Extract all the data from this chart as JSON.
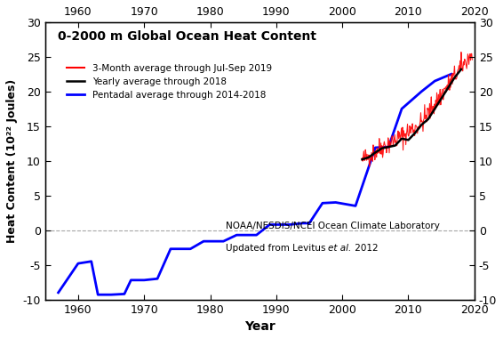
{
  "title": "0-2000 m Global Ocean Heat Content",
  "xlabel": "Year",
  "ylabel": "Heat Content (10²² Joules)",
  "ylim": [
    -10,
    30
  ],
  "xlim": [
    1955,
    2020
  ],
  "yticks": [
    -10,
    -5,
    0,
    5,
    10,
    15,
    20,
    25,
    30
  ],
  "xticks_bottom": [
    1960,
    1970,
    1980,
    1990,
    2000,
    2010,
    2020
  ],
  "xticks_top": [
    1960,
    1970,
    1980,
    1990,
    2000,
    2010,
    2020
  ],
  "legend_labels": [
    "3-Month average through Jul-Sep 2019",
    "Yearly average through 2018",
    "Pentadal average through 2014-2018"
  ],
  "legend_colors": [
    "#ff0000",
    "#000000",
    "#0000ff"
  ],
  "background_color": "#ffffff",
  "pent_x": [
    1957,
    1960,
    1962,
    1963,
    1965,
    1967,
    1968,
    1970,
    1972,
    1974,
    1977,
    1979,
    1982,
    1984,
    1987,
    1989,
    1992,
    1994,
    1995,
    1997,
    1999,
    2002,
    2005,
    2007,
    2009,
    2012,
    2014,
    2016.5
  ],
  "pent_y": [
    -9.0,
    -4.8,
    -4.5,
    -9.3,
    -9.3,
    -9.2,
    -7.2,
    -7.2,
    -7.0,
    -2.7,
    -2.7,
    -1.6,
    -1.6,
    -0.7,
    -0.7,
    0.8,
    0.8,
    1.0,
    1.0,
    3.9,
    4.0,
    3.5,
    11.9,
    12.0,
    17.5,
    20.0,
    21.5,
    22.5
  ],
  "yearly_x": [
    2003,
    2004,
    2005,
    2006,
    2007,
    2008,
    2009,
    2010,
    2011,
    2012,
    2013,
    2014,
    2015,
    2016,
    2017,
    2018
  ],
  "yearly_y": [
    10.2,
    10.5,
    11.2,
    11.8,
    12.0,
    12.2,
    13.2,
    13.0,
    14.0,
    15.2,
    16.0,
    17.5,
    19.0,
    20.5,
    22.0,
    23.2
  ],
  "monthly_base_x": [
    2003,
    2006,
    2009,
    2012,
    2015,
    2018,
    2019.67
  ],
  "monthly_base_y": [
    10.0,
    12.0,
    13.5,
    15.5,
    19.5,
    23.5,
    25.5
  ],
  "monthly_x_start": 2003,
  "monthly_x_end": 2019.67,
  "monthly_n_points": 200,
  "noise_seed": 42,
  "noise_std": 0.8
}
